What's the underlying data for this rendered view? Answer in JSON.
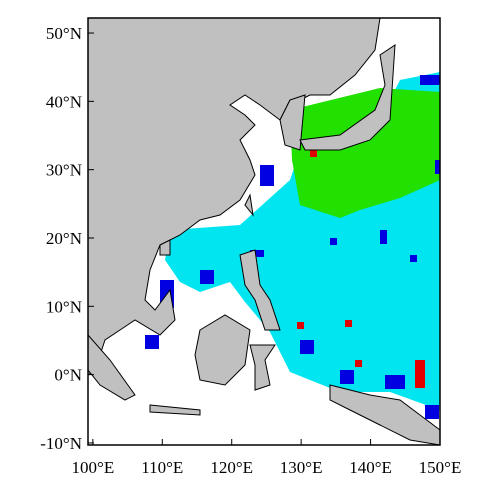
{
  "chart_data": {
    "type": "map",
    "xlim": [
      99.3,
      150
    ],
    "ylim": [
      -10.3,
      52.2
    ],
    "xticks": [
      {
        "value": 100,
        "label": "100°E"
      },
      {
        "value": 110,
        "label": "110°E"
      },
      {
        "value": 120,
        "label": "120°E"
      },
      {
        "value": 130,
        "label": "130°E"
      },
      {
        "value": 140,
        "label": "140°E"
      },
      {
        "value": 150,
        "label": "150°E"
      }
    ],
    "yticks": [
      {
        "value": -10,
        "label": "-10°N"
      },
      {
        "value": 0,
        "label": "0°N"
      },
      {
        "value": 10,
        "label": "10°N"
      },
      {
        "value": 20,
        "label": "20°N"
      },
      {
        "value": 30,
        "label": "30°N"
      },
      {
        "value": 40,
        "label": "40°N"
      },
      {
        "value": 50,
        "label": "50°N"
      }
    ]
  }
}
